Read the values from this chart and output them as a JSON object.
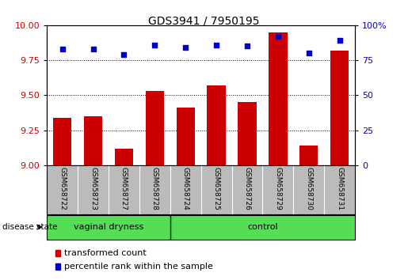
{
  "title": "GDS3941 / 7950195",
  "samples": [
    "GSM658722",
    "GSM658723",
    "GSM658727",
    "GSM658728",
    "GSM658724",
    "GSM658725",
    "GSM658726",
    "GSM658729",
    "GSM658730",
    "GSM658731"
  ],
  "bar_values": [
    9.34,
    9.35,
    9.12,
    9.53,
    9.41,
    9.57,
    9.45,
    9.95,
    9.14,
    9.82
  ],
  "percentile_values": [
    83,
    83,
    79,
    86,
    84,
    86,
    85,
    92,
    80,
    89
  ],
  "ylim_left": [
    9.0,
    10.0
  ],
  "ylim_right": [
    0,
    100
  ],
  "yticks_left": [
    9.0,
    9.25,
    9.5,
    9.75,
    10.0
  ],
  "yticks_right": [
    0,
    25,
    50,
    75,
    100
  ],
  "bar_color": "#cc0000",
  "marker_color": "#0000cc",
  "group1_label": "vaginal dryness",
  "group2_label": "control",
  "group1_count": 4,
  "group2_count": 6,
  "legend_bar_label": "transformed count",
  "legend_marker_label": "percentile rank within the sample",
  "disease_state_label": "disease state",
  "group_bg_color": "#55dd55",
  "tick_area_bg": "#bbbbbb",
  "figsize": [
    5.15,
    3.54
  ],
  "dpi": 100
}
